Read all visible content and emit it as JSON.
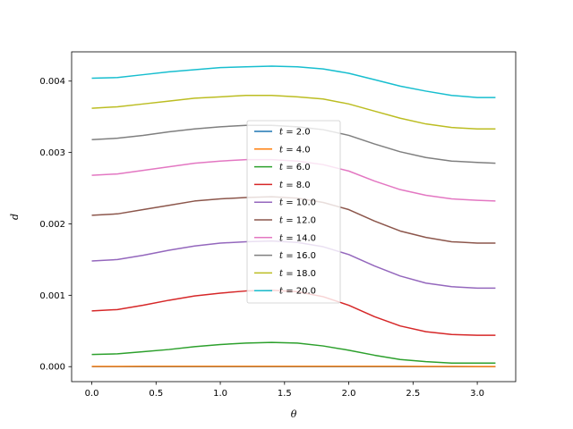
{
  "chart_data": {
    "type": "line",
    "xlabel": "θ",
    "ylabel": "d",
    "xlim": [
      -0.157,
      3.299
    ],
    "ylim": [
      -0.00021,
      0.00441
    ],
    "xticks": [
      0.0,
      0.5,
      1.0,
      1.5,
      2.0,
      2.5,
      3.0
    ],
    "xtick_labels": [
      "0.0",
      "0.5",
      "1.0",
      "1.5",
      "2.0",
      "2.5",
      "3.0"
    ],
    "yticks": [
      0.0,
      0.001,
      0.002,
      0.003,
      0.004
    ],
    "ytick_labels": [
      "0.000",
      "0.001",
      "0.002",
      "0.003",
      "0.004"
    ],
    "grid": false,
    "legend_position": "center",
    "x": [
      0.0,
      0.2,
      0.4,
      0.6,
      0.8,
      1.0,
      1.2,
      1.4,
      1.6,
      1.8,
      2.0,
      2.2,
      2.4,
      2.6,
      2.8,
      3.0,
      3.1416
    ],
    "series": [
      {
        "name": "t = 2.0",
        "legend_prefix": "t",
        "legend_value": "= 2.0",
        "color": "#1f77b4",
        "values": [
          0.0,
          0.0,
          0.0,
          0.0,
          0.0,
          0.0,
          0.0,
          0.0,
          0.0,
          0.0,
          0.0,
          0.0,
          0.0,
          0.0,
          0.0,
          0.0,
          0.0
        ]
      },
      {
        "name": "t = 4.0",
        "legend_prefix": "t",
        "legend_value": "= 4.0",
        "color": "#ff7f0e",
        "values": [
          3e-06,
          3e-06,
          4e-06,
          4e-06,
          4e-06,
          5e-06,
          5e-06,
          5e-06,
          5e-06,
          5e-06,
          5e-06,
          4e-06,
          4e-06,
          3e-06,
          3e-06,
          2e-06,
          2e-06
        ]
      },
      {
        "name": "t = 6.0",
        "legend_prefix": "t",
        "legend_value": "= 6.0",
        "color": "#2ca02c",
        "values": [
          0.00017,
          0.00018,
          0.00021,
          0.00024,
          0.00028,
          0.00031,
          0.00033,
          0.00034,
          0.00033,
          0.00029,
          0.00023,
          0.00016,
          0.0001,
          7e-05,
          5e-05,
          5e-05,
          5e-05
        ]
      },
      {
        "name": "t = 8.0",
        "legend_prefix": "t",
        "legend_value": "= 8.0",
        "color": "#d62728",
        "values": [
          0.00078,
          0.0008,
          0.00086,
          0.00093,
          0.00099,
          0.00103,
          0.00106,
          0.00107,
          0.00105,
          0.00098,
          0.00086,
          0.0007,
          0.00057,
          0.00049,
          0.00045,
          0.00044,
          0.00044
        ]
      },
      {
        "name": "t = 10.0",
        "legend_prefix": "t",
        "legend_value": "= 10.0",
        "color": "#9467bd",
        "values": [
          0.00148,
          0.0015,
          0.00156,
          0.00163,
          0.00169,
          0.00173,
          0.00175,
          0.00176,
          0.00174,
          0.00168,
          0.00157,
          0.00141,
          0.00127,
          0.00117,
          0.00112,
          0.0011,
          0.0011
        ]
      },
      {
        "name": "t = 12.0",
        "legend_prefix": "t",
        "legend_value": "= 12.0",
        "color": "#8c564b",
        "values": [
          0.00212,
          0.00214,
          0.0022,
          0.00226,
          0.00232,
          0.00235,
          0.00237,
          0.00238,
          0.00236,
          0.0023,
          0.0022,
          0.00204,
          0.0019,
          0.00181,
          0.00175,
          0.00173,
          0.00173
        ]
      },
      {
        "name": "t = 14.0",
        "legend_prefix": "t",
        "legend_value": "= 14.0",
        "color": "#e377c2",
        "values": [
          0.00268,
          0.0027,
          0.00275,
          0.0028,
          0.00285,
          0.00288,
          0.0029,
          0.0029,
          0.00288,
          0.00283,
          0.00274,
          0.0026,
          0.00248,
          0.0024,
          0.00235,
          0.00233,
          0.00232
        ]
      },
      {
        "name": "t = 16.0",
        "legend_prefix": "t",
        "legend_value": "= 16.0",
        "color": "#7f7f7f",
        "values": [
          0.00318,
          0.0032,
          0.00324,
          0.00329,
          0.00333,
          0.00336,
          0.00338,
          0.00338,
          0.00336,
          0.00332,
          0.00324,
          0.00312,
          0.00301,
          0.00293,
          0.00288,
          0.00286,
          0.00285
        ]
      },
      {
        "name": "t = 18.0",
        "legend_prefix": "t",
        "legend_value": "= 18.0",
        "color": "#bcbd22",
        "values": [
          0.00362,
          0.00364,
          0.00368,
          0.00372,
          0.00376,
          0.00378,
          0.0038,
          0.0038,
          0.00378,
          0.00375,
          0.00368,
          0.00358,
          0.00348,
          0.0034,
          0.00335,
          0.00333,
          0.00333
        ]
      },
      {
        "name": "t = 20.0",
        "legend_prefix": "t",
        "legend_value": "= 20.0",
        "color": "#17becf",
        "values": [
          0.00404,
          0.00405,
          0.00409,
          0.00413,
          0.00416,
          0.00419,
          0.0042,
          0.00421,
          0.0042,
          0.00417,
          0.00411,
          0.00402,
          0.00393,
          0.00386,
          0.0038,
          0.00377,
          0.00377
        ]
      }
    ]
  }
}
